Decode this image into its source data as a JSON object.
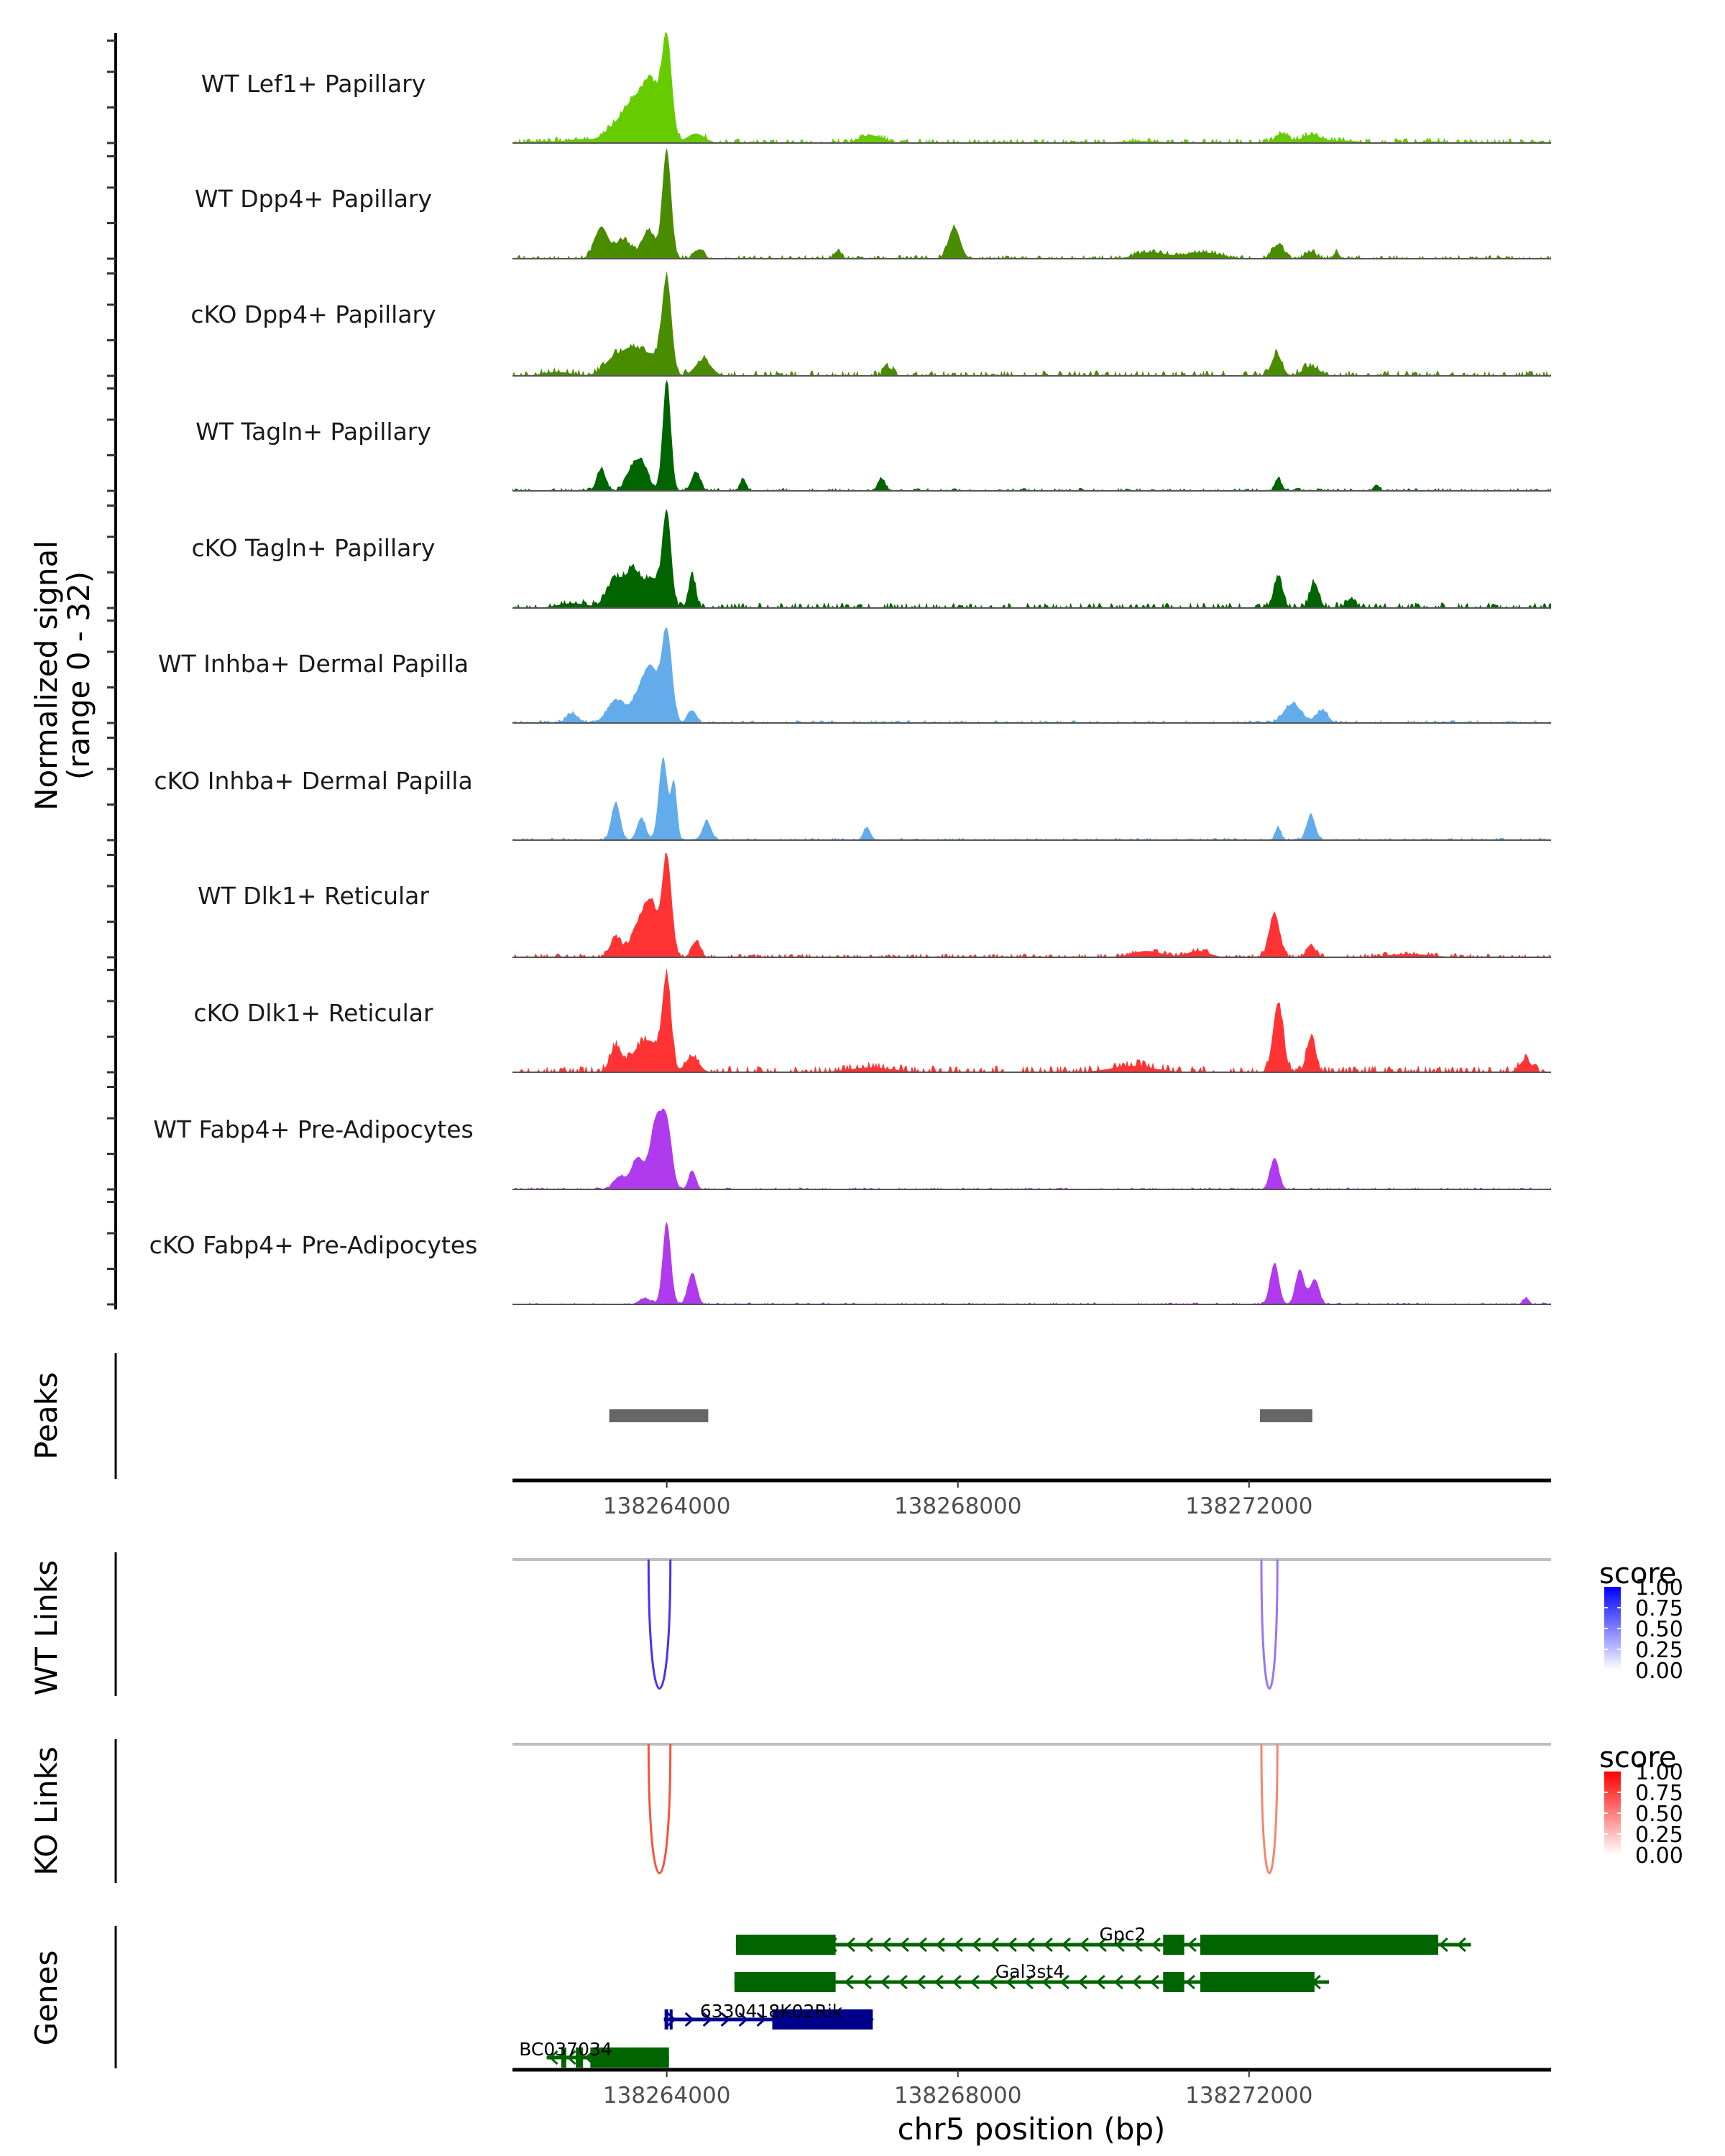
{
  "chart_data": {
    "type": "area",
    "title": "",
    "region": {
      "chrom": "chr5",
      "start": 138261880,
      "end": 138276150
    },
    "xlabel": "chr5 position (bp)",
    "ylabel": "Normalized signal\n(range 0 - 32)",
    "ylabel_line1": "Normalized signal",
    "ylabel_line2": "(range 0 - 32)",
    "ylim": [
      0,
      32
    ],
    "x_ticks": [
      138264000,
      138268000,
      138272000
    ],
    "x_tick_labels": [
      "138264000",
      "138268000",
      "138272000"
    ],
    "coverage_tracks": [
      {
        "name": "WT Lef1+ Papillary",
        "color": "#66CC00",
        "peaks": [
          [
            138262300,
            0.6,
            120
          ],
          [
            138262800,
            1.2,
            200
          ],
          [
            138263300,
            5,
            150
          ],
          [
            138263500,
            7,
            120
          ],
          [
            138263650,
            9,
            120
          ],
          [
            138263800,
            15,
            100
          ],
          [
            138264000,
            32,
            70
          ],
          [
            138264400,
            3,
            120
          ],
          [
            138266800,
            2.5,
            150
          ],
          [
            138270500,
            0.6,
            300
          ],
          [
            138272450,
            3,
            90
          ],
          [
            138272850,
            2.5,
            130
          ],
          [
            138273300,
            0.8,
            200
          ],
          [
            138274500,
            0.5,
            200
          ]
        ],
        "noise": 0.5
      },
      {
        "name": "WT Dpp4+ Papillary",
        "color": "#4A8C00",
        "peaks": [
          [
            138263100,
            10,
            90
          ],
          [
            138263400,
            6,
            110
          ],
          [
            138263750,
            9,
            90
          ],
          [
            138264000,
            34,
            60
          ],
          [
            138264450,
            3,
            60
          ],
          [
            138266350,
            2.5,
            50
          ],
          [
            138267950,
            10,
            80
          ],
          [
            138270650,
            2,
            200
          ],
          [
            138271350,
            2,
            250
          ],
          [
            138272400,
            4.5,
            80
          ],
          [
            138272850,
            2.2,
            70
          ],
          [
            138273200,
            2,
            40
          ]
        ],
        "noise": 0.4
      },
      {
        "name": "cKO Dpp4+ Papillary",
        "color": "#4A8C00",
        "peaks": [
          [
            138262500,
            1.2,
            200
          ],
          [
            138263300,
            6,
            150
          ],
          [
            138263550,
            7,
            120
          ],
          [
            138263800,
            6,
            120
          ],
          [
            138264000,
            30,
            65
          ],
          [
            138264500,
            5,
            110
          ],
          [
            138267050,
            2.5,
            60
          ],
          [
            138272380,
            7,
            70
          ],
          [
            138272850,
            3,
            110
          ]
        ],
        "noise": 0.6
      },
      {
        "name": "WT Tagln+ Papillary",
        "color": "#006400",
        "peaks": [
          [
            138263100,
            7,
            60
          ],
          [
            138263500,
            5,
            80
          ],
          [
            138263650,
            9,
            90
          ],
          [
            138264000,
            35,
            55
          ],
          [
            138264400,
            6,
            60
          ],
          [
            138265050,
            4,
            40
          ],
          [
            138266950,
            4,
            50
          ],
          [
            138272400,
            4,
            40
          ],
          [
            138273750,
            2,
            40
          ]
        ],
        "noise": 0.3
      },
      {
        "name": "cKO Tagln+ Papillary",
        "color": "#006400",
        "peaks": [
          [
            138262700,
            1.5,
            200
          ],
          [
            138263300,
            9,
            120
          ],
          [
            138263550,
            11,
            100
          ],
          [
            138263800,
            9,
            100
          ],
          [
            138264000,
            30,
            60
          ],
          [
            138264350,
            10,
            50
          ],
          [
            138272400,
            10,
            60
          ],
          [
            138272900,
            8,
            60
          ],
          [
            138273400,
            3,
            60
          ]
        ],
        "noise": 0.6
      },
      {
        "name": "WT Inhba+ Dermal Papilla",
        "color": "#63ACEC",
        "peaks": [
          [
            138262700,
            3,
            80
          ],
          [
            138263300,
            7,
            120
          ],
          [
            138263650,
            10,
            120
          ],
          [
            138263800,
            13,
            90
          ],
          [
            138264000,
            29,
            70
          ],
          [
            138264350,
            4,
            60
          ],
          [
            138272600,
            6,
            120
          ],
          [
            138273000,
            4,
            80
          ]
        ],
        "noise": 0.3
      },
      {
        "name": "cKO Inhba+ Dermal Papilla",
        "color": "#63ACEC",
        "peaks": [
          [
            138263300,
            12,
            60
          ],
          [
            138263650,
            7,
            60
          ],
          [
            138263950,
            26,
            60
          ],
          [
            138264100,
            18,
            40
          ],
          [
            138264550,
            6,
            60
          ],
          [
            138266750,
            4,
            50
          ],
          [
            138272400,
            4,
            40
          ],
          [
            138272850,
            8,
            60
          ]
        ],
        "noise": 0.25
      },
      {
        "name": "WT Dlk1+ Reticular",
        "color": "#FF3333",
        "peaks": [
          [
            138263300,
            6,
            80
          ],
          [
            138263650,
            12,
            120
          ],
          [
            138263800,
            12,
            80
          ],
          [
            138264000,
            32,
            65
          ],
          [
            138264400,
            5,
            60
          ],
          [
            138270600,
            2,
            200
          ],
          [
            138271300,
            2,
            150
          ],
          [
            138272350,
            14,
            70
          ],
          [
            138272850,
            4,
            60
          ],
          [
            138274200,
            1,
            300
          ]
        ],
        "noise": 0.4
      },
      {
        "name": "cKO Dlk1+ Reticular",
        "color": "#FF3333",
        "peaks": [
          [
            138263300,
            8,
            80
          ],
          [
            138263600,
            6,
            120
          ],
          [
            138263800,
            8,
            120
          ],
          [
            138264000,
            29,
            60
          ],
          [
            138264350,
            5,
            90
          ],
          [
            138266800,
            1.5,
            300
          ],
          [
            138270400,
            2,
            300
          ],
          [
            138272400,
            22,
            70
          ],
          [
            138272850,
            11,
            60
          ],
          [
            138275800,
            4,
            80
          ]
        ],
        "noise": 0.7
      },
      {
        "name": "WT Fabp4+ Pre-Adipocytes",
        "color": "#B03AEE",
        "peaks": [
          [
            138263350,
            4,
            80
          ],
          [
            138263600,
            10,
            90
          ],
          [
            138263850,
            21,
            80
          ],
          [
            138264000,
            20,
            70
          ],
          [
            138264350,
            6,
            50
          ],
          [
            138272350,
            10,
            60
          ]
        ],
        "noise": 0.2
      },
      {
        "name": "cKO Fabp4+ Pre-Adipocytes",
        "color": "#B03AEE",
        "peaks": [
          [
            138263700,
            2,
            80
          ],
          [
            138264000,
            26,
            55
          ],
          [
            138264350,
            10,
            60
          ],
          [
            138272350,
            13,
            60
          ],
          [
            138272700,
            11,
            60
          ],
          [
            138272900,
            8,
            60
          ],
          [
            138275800,
            2,
            40
          ]
        ],
        "noise": 0.2
      }
    ],
    "peaks_track": {
      "label": "Peaks",
      "color": "#666666",
      "regions": [
        [
          138263210,
          138264570
        ],
        [
          138272150,
          138272870
        ]
      ]
    },
    "link_tracks": [
      {
        "label": "WT Links",
        "links": [
          {
            "start": 138263750,
            "end": 138264050,
            "score": 0.95,
            "color": "#4C2FF5"
          },
          {
            "start": 138272170,
            "end": 138272390,
            "score": 0.6,
            "color": "#9A75F5"
          }
        ]
      },
      {
        "label": "KO Links",
        "links": [
          {
            "start": 138263750,
            "end": 138264050,
            "score": 0.85,
            "color": "#F5553A"
          },
          {
            "start": 138272170,
            "end": 138272390,
            "score": 0.55,
            "color": "#F5876A"
          }
        ]
      }
    ],
    "legends": [
      {
        "title": "score",
        "low_color": "#FFFFFF",
        "high_color": "#0000FF",
        "ticks": [
          "1.00",
          "0.75",
          "0.50",
          "0.25",
          "0.00"
        ]
      },
      {
        "title": "score",
        "low_color": "#FFFFFF",
        "high_color": "#FF0000",
        "ticks": [
          "1.00",
          "0.75",
          "0.50",
          "0.25",
          "0.00"
        ]
      }
    ],
    "genes_track": {
      "label": "Genes",
      "genes": [
        {
          "name": "Gpc2",
          "strand": "-",
          "color": "#006400",
          "start": 138264950,
          "end": 138275050,
          "exons": [
            [
              138264950,
              138266320
            ],
            [
              138270820,
              138271110
            ],
            [
              138271330,
              138273710
            ],
            [
              138273710,
              138274600
            ]
          ]
        },
        {
          "name": "Gal3st4",
          "strand": "-",
          "color": "#006400",
          "start": 138264930,
          "end": 138273100,
          "exons": [
            [
              138264930,
              138266320
            ],
            [
              138270820,
              138271110
            ],
            [
              138271330,
              138272900
            ]
          ]
        },
        {
          "name": "6330418K02Rik",
          "strand": "+",
          "color": "#00008B",
          "start": 138263960,
          "end": 138266830,
          "exons": [
            [
              138263970,
              138264020
            ],
            [
              138264040,
              138264080
            ],
            [
              138265450,
              138266830
            ]
          ]
        },
        {
          "name": "BC037034",
          "strand": "-",
          "color": "#006400",
          "start": 138262350,
          "end": 138264030,
          "exons": [
            [
              138262550,
              138262620
            ],
            [
              138262750,
              138262850
            ],
            [
              138262950,
              138264030
            ]
          ]
        }
      ]
    }
  }
}
